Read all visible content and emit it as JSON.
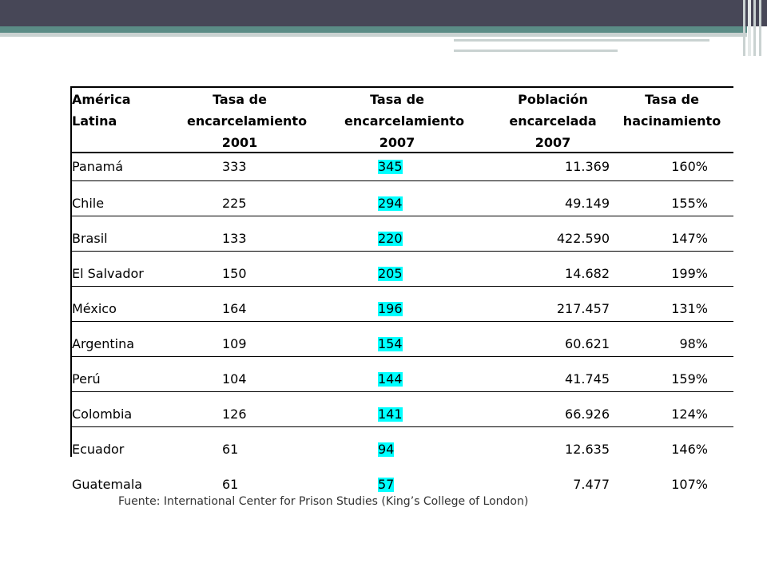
{
  "table": {
    "headers": [
      [
        "América",
        "Latina"
      ],
      [
        "Tasa de",
        "encarcelamiento",
        "2001"
      ],
      [
        "Tasa de",
        "encarcelamiento",
        "2007"
      ],
      [
        "Población",
        "encarcelada",
        "2007"
      ],
      [
        "Tasa de",
        "hacinamiento"
      ]
    ],
    "rows": [
      [
        "Panamá",
        "333",
        "345",
        "11.369",
        "160%"
      ],
      [
        "Chile",
        "225",
        "294",
        "49.149",
        "155%"
      ],
      [
        "Brasil",
        "133",
        "220",
        "422.590",
        "147%"
      ],
      [
        "El Salvador",
        "150",
        "205",
        "14.682",
        "199%"
      ],
      [
        "México",
        "164",
        "196",
        "217.457",
        "131%"
      ],
      [
        "Argentina",
        "109",
        "154",
        "60.621",
        "98%"
      ],
      [
        "Perú",
        "104",
        "144",
        "41.745",
        "159%"
      ],
      [
        "Colombia",
        "126",
        "141",
        "66.926",
        "124%"
      ],
      [
        "Ecuador",
        "61",
        "94",
        "12.635",
        "146%"
      ],
      [
        "Guatemala",
        "61",
        "57",
        "7.477",
        "107%"
      ]
    ],
    "highlight_color": "#00ffff"
  },
  "source_note": "Fuente: International Center for Prison Studies (King’s College of London)"
}
